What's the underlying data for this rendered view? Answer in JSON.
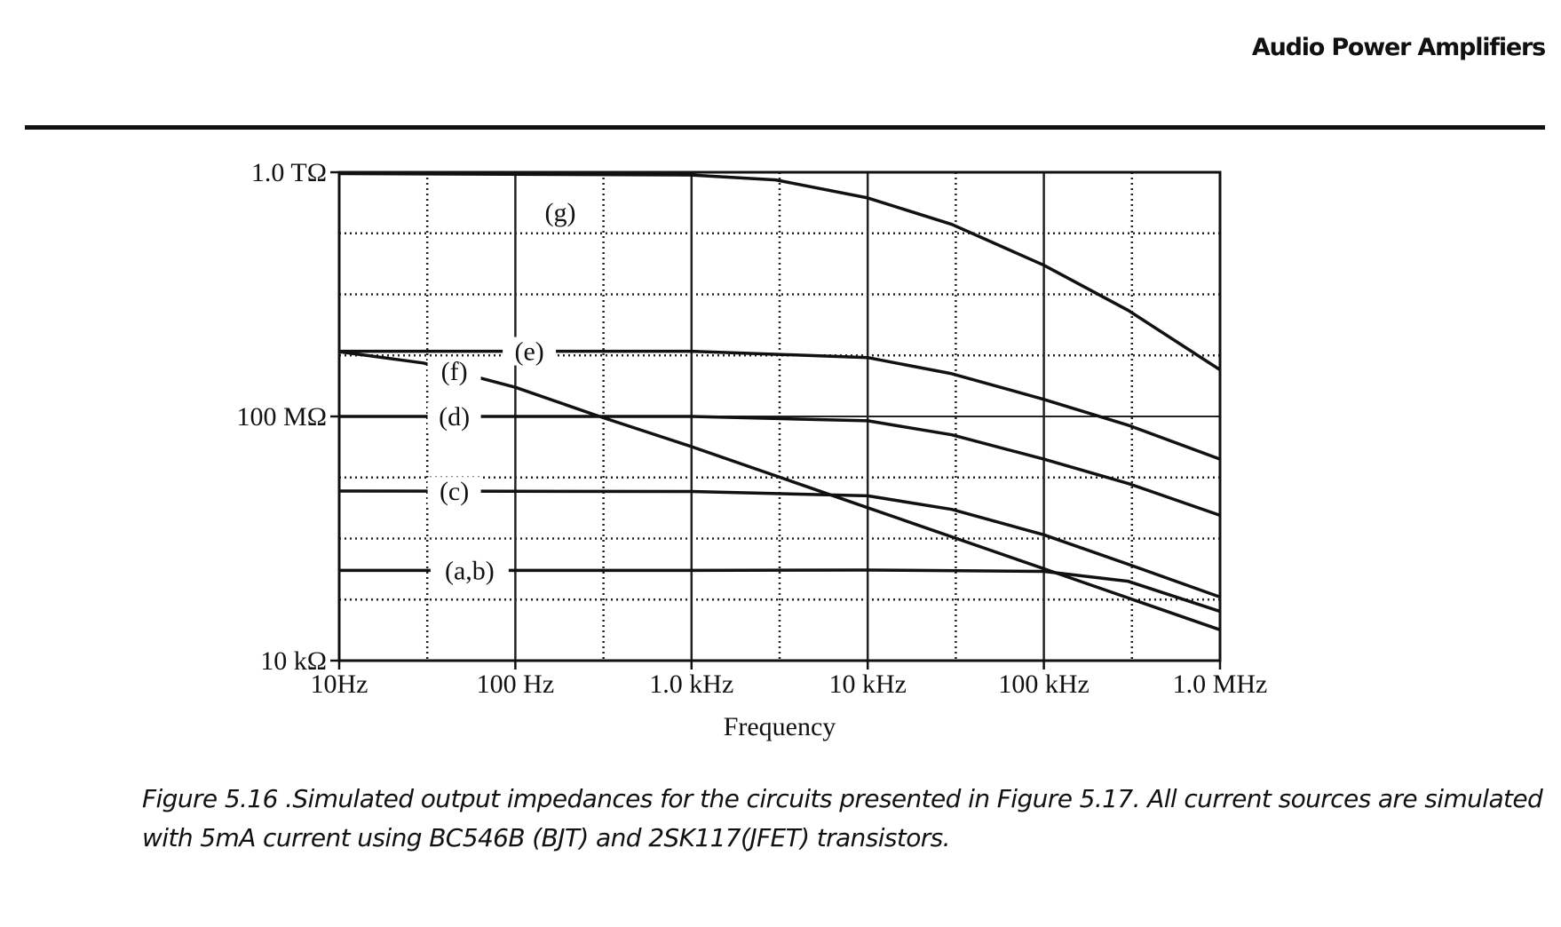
{
  "header": {
    "title": "Audio Power Amplifiers"
  },
  "caption": {
    "line1": "Figure 5.16 .Simulated output impedances for the circuits presented in Figure 5.17. All current sources are simulated",
    "line2": "with 5mA current using BC546B (BJT) and 2SK117(JFET) transistors."
  },
  "chart_data": {
    "type": "line",
    "title": "",
    "xlabel": "Frequency",
    "ylabel": "",
    "x_scale": "log",
    "y_scale": "log",
    "xlim": [
      10,
      1000000
    ],
    "ylim": [
      10000,
      1000000000000
    ],
    "grid": true,
    "x_ticks": [
      {
        "value": 10,
        "label": "10Hz"
      },
      {
        "value": 100,
        "label": "100 Hz"
      },
      {
        "value": 1000,
        "label": "1.0 kHz"
      },
      {
        "value": 10000,
        "label": "10 kHz"
      },
      {
        "value": 100000,
        "label": "100 kHz"
      },
      {
        "value": 1000000,
        "label": "1.0 MHz"
      }
    ],
    "y_ticks": [
      {
        "value": 10000,
        "label": "10 kΩ"
      },
      {
        "value": 100000000,
        "label": "100 MΩ"
      },
      {
        "value": 1000000000000,
        "label": "1.0 TΩ"
      }
    ],
    "series": [
      {
        "name": "(g)",
        "x": [
          10,
          1000,
          3000,
          10000,
          30000,
          100000,
          300000,
          1000000
        ],
        "y": [
          950000000000,
          900000000000,
          750000000000,
          380000000000,
          140000000000,
          30000000000,
          5500000000,
          580000000
        ]
      },
      {
        "name": "(e)",
        "x": [
          10,
          1000,
          10000,
          30000,
          100000,
          300000,
          1000000
        ],
        "y": [
          1170000000,
          1170000000,
          920000000,
          500000000,
          190000000,
          72000000,
          20000000
        ]
      },
      {
        "name": "(f)",
        "x": [
          10,
          30,
          100,
          300,
          1000,
          10000,
          100000,
          1000000
        ],
        "y": [
          1150000000,
          750000000,
          300000000,
          100000000,
          32000000,
          3200000,
          320000,
          32000
        ]
      },
      {
        "name": "(d)",
        "x": [
          10,
          1000,
          10000,
          30000,
          100000,
          300000,
          1000000
        ],
        "y": [
          100000000,
          100000000,
          85000000,
          50000000,
          20000000,
          8000000,
          2400000
        ]
      },
      {
        "name": "(c)",
        "x": [
          10,
          1000,
          10000,
          30000,
          100000,
          300000,
          1000000
        ],
        "y": [
          6000000,
          5900000,
          5000000,
          3000000,
          1150000,
          380000,
          110000
        ]
      },
      {
        "name": "(a,b)",
        "x": [
          10,
          1000,
          10000,
          100000,
          300000,
          1000000
        ],
        "y": [
          300000,
          300000,
          305000,
          290000,
          200000,
          64000
        ]
      }
    ],
    "annotations": [
      {
        "text": "(g)",
        "series": "(g)"
      },
      {
        "text": "(e)",
        "series": "(e)"
      },
      {
        "text": "(f)",
        "series": "(f)"
      },
      {
        "text": "(d)",
        "series": "(d)"
      },
      {
        "text": "(c)",
        "series": "(c)"
      },
      {
        "text": "(a,b)",
        "series": "(a,b)"
      }
    ],
    "colors": {
      "line": "#111111",
      "grid": "#222222",
      "frame": "#111111"
    }
  }
}
